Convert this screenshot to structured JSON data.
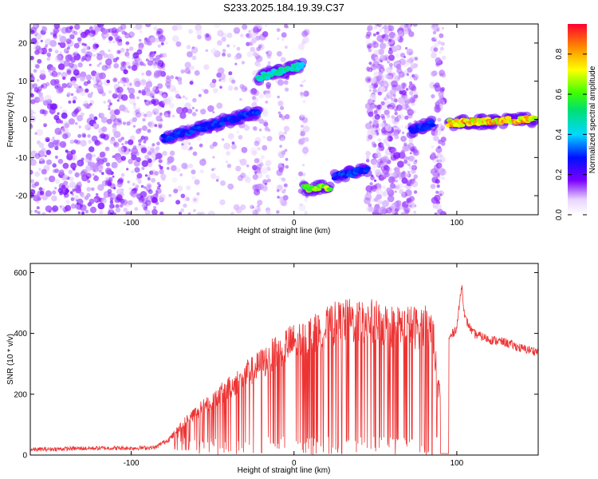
{
  "title": "S233.2025.184.19.39.C37",
  "chart_data": [
    {
      "type": "heatmap",
      "title": "S233.2025.184.19.39.C37",
      "xlabel": "Height of straight line (km)",
      "ylabel": "Frequency (Hz)",
      "xlim": [
        -162,
        150
      ],
      "ylim": [
        -25,
        25
      ],
      "xticks": [
        -100,
        0,
        100
      ],
      "yticks": [
        20,
        10,
        0,
        -10,
        -20
      ],
      "colorbar": {
        "label": "Normalized spectral amplitude",
        "range": [
          0.0,
          0.95
        ],
        "ticks": [
          0.0,
          0.2,
          0.4,
          0.6,
          0.8
        ]
      },
      "features": [
        {
          "x": [
            -80,
            -22
          ],
          "frequency": [
            -5,
            2
          ],
          "amplitude": 0.35
        },
        {
          "x": [
            -22,
            5
          ],
          "frequency": [
            11,
            14
          ],
          "amplitude": 0.55
        },
        {
          "x": [
            6,
            22
          ],
          "frequency": [
            -18,
            -18
          ],
          "amplitude": 0.75
        },
        {
          "x": [
            25,
            45
          ],
          "frequency": [
            -15,
            -13
          ],
          "amplitude": 0.35
        },
        {
          "x": [
            72,
            85
          ],
          "frequency": [
            -3,
            -1
          ],
          "amplitude": 0.35
        },
        {
          "x": [
            95,
            148
          ],
          "frequency": [
            -1,
            0
          ],
          "amplitude": 0.9
        }
      ]
    },
    {
      "type": "line",
      "xlabel": "Height of straight line (km)",
      "ylabel": "SNR (10 * v/v)",
      "xlim": [
        -162,
        150
      ],
      "ylim": [
        0,
        630
      ],
      "xticks": [
        -100,
        0,
        100
      ],
      "yticks": [
        0,
        200,
        400,
        600
      ],
      "color": "#ee3333",
      "series": [
        {
          "x": [
            -162,
            -140,
            -120,
            -100,
            -85,
            -75,
            -65,
            -55,
            -45,
            -35,
            -25,
            -15,
            -5,
            5,
            15,
            25,
            35,
            45,
            55,
            65,
            75,
            85,
            88,
            92,
            95,
            100,
            103,
            105,
            110,
            120,
            130,
            140,
            150
          ],
          "values": [
            15,
            18,
            20,
            20,
            22,
            60,
            120,
            160,
            200,
            240,
            280,
            320,
            360,
            380,
            400,
            430,
            440,
            440,
            430,
            420,
            420,
            420,
            250,
            120,
            380,
            420,
            560,
            450,
            400,
            380,
            370,
            350,
            340
          ]
        }
      ]
    }
  ]
}
